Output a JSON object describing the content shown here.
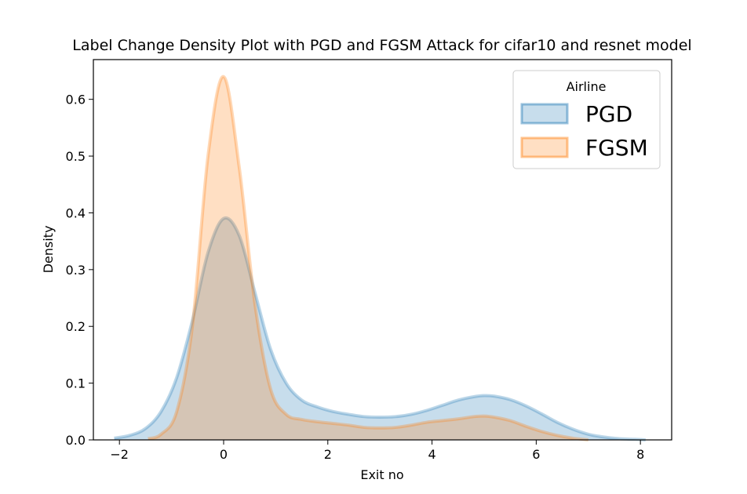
{
  "chart_data": {
    "type": "area",
    "title": "Label Change Density Plot with PGD and FGSM Attack for cifar10 and  resnet model",
    "xlabel": "Exit no",
    "ylabel": "Density",
    "xlim": [
      -2.5,
      8.6
    ],
    "ylim": [
      0,
      0.67
    ],
    "xticks": [
      -2,
      0,
      2,
      4,
      6,
      8
    ],
    "yticks": [
      0.0,
      0.1,
      0.2,
      0.3,
      0.4,
      0.5,
      0.6
    ],
    "xtick_labels": [
      "−2",
      "0",
      "2",
      "4",
      "6",
      "8"
    ],
    "ytick_labels": [
      "0.0",
      "0.1",
      "0.2",
      "0.3",
      "0.4",
      "0.5",
      "0.6"
    ],
    "grid": false,
    "legend": {
      "title": "Airline",
      "placement": "top-right"
    },
    "series": [
      {
        "name": "PGD",
        "color": "#1f77b4",
        "fill_alpha": 0.25,
        "x": [
          -2.1,
          -1.8,
          -1.5,
          -1.2,
          -0.9,
          -0.6,
          -0.3,
          0.0,
          0.3,
          0.6,
          0.9,
          1.2,
          1.5,
          1.8,
          2.1,
          2.4,
          2.7,
          3.0,
          3.3,
          3.6,
          3.9,
          4.2,
          4.5,
          4.8,
          5.0,
          5.2,
          5.5,
          5.8,
          6.1,
          6.4,
          6.7,
          7.0,
          7.3,
          7.6,
          7.9,
          8.1
        ],
        "y": [
          0.003,
          0.008,
          0.02,
          0.05,
          0.11,
          0.21,
          0.33,
          0.39,
          0.36,
          0.26,
          0.16,
          0.1,
          0.07,
          0.058,
          0.05,
          0.045,
          0.041,
          0.04,
          0.041,
          0.045,
          0.052,
          0.061,
          0.07,
          0.076,
          0.078,
          0.077,
          0.071,
          0.06,
          0.046,
          0.031,
          0.019,
          0.01,
          0.005,
          0.002,
          0.001,
          0.0
        ]
      },
      {
        "name": "FGSM",
        "color": "#ff7f0e",
        "fill_alpha": 0.25,
        "x": [
          -1.45,
          -1.2,
          -0.9,
          -0.6,
          -0.3,
          0.0,
          0.3,
          0.6,
          0.9,
          1.2,
          1.5,
          1.8,
          2.1,
          2.4,
          2.7,
          3.0,
          3.3,
          3.6,
          3.9,
          4.2,
          4.5,
          4.8,
          5.0,
          5.2,
          5.5,
          5.8,
          6.1,
          6.4,
          6.7,
          7.0
        ],
        "y": [
          0.002,
          0.01,
          0.05,
          0.2,
          0.5,
          0.64,
          0.48,
          0.24,
          0.09,
          0.045,
          0.036,
          0.032,
          0.029,
          0.026,
          0.022,
          0.021,
          0.022,
          0.026,
          0.031,
          0.034,
          0.037,
          0.041,
          0.042,
          0.04,
          0.034,
          0.024,
          0.015,
          0.008,
          0.003,
          0.0
        ]
      }
    ]
  }
}
